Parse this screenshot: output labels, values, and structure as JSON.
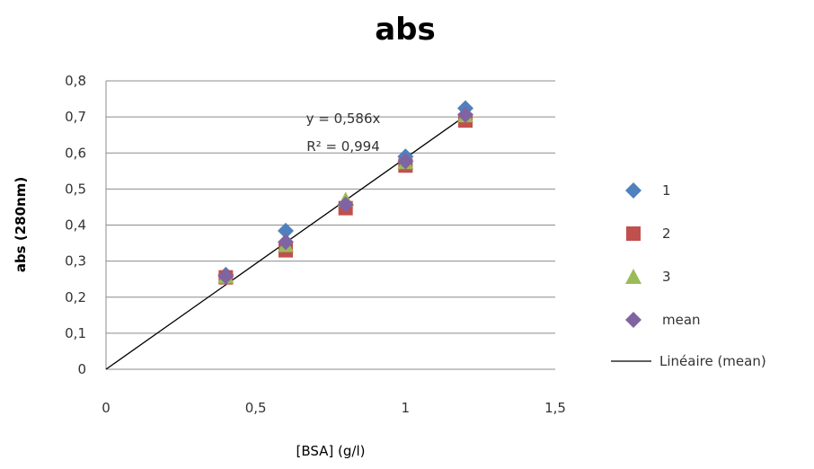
{
  "chart_data": {
    "type": "scatter",
    "title": "abs",
    "xlabel": "[BSA] (g/l)",
    "ylabel": "abs (280nm)",
    "xlim": [
      0,
      1.5
    ],
    "ylim": [
      0,
      0.8
    ],
    "x_ticks": [
      "0",
      "0,5",
      "1",
      "1,5"
    ],
    "y_ticks": [
      "0",
      "0,1",
      "0,2",
      "0,3",
      "0,4",
      "0,5",
      "0,6",
      "0,7",
      "0,8"
    ],
    "grid": "horizontal",
    "legend_position": "right",
    "series": [
      {
        "name": "1",
        "marker": "diamond",
        "color": "#4f81bd",
        "x": [
          0.4,
          0.6,
          0.8,
          1.0,
          1.2
        ],
        "y": [
          0.262,
          0.384,
          0.455,
          0.59,
          0.724
        ]
      },
      {
        "name": "2",
        "marker": "square",
        "color": "#c0504d",
        "x": [
          0.4,
          0.6,
          0.8,
          1.0,
          1.2
        ],
        "y": [
          0.255,
          0.33,
          0.447,
          0.565,
          0.69
        ]
      },
      {
        "name": "3",
        "marker": "triangle",
        "color": "#9bbb59",
        "x": [
          0.4,
          0.6,
          0.8,
          1.0,
          1.2
        ],
        "y": [
          0.258,
          0.345,
          0.47,
          0.575,
          0.705
        ]
      },
      {
        "name": "mean",
        "marker": "diamond",
        "color": "#8064a2",
        "x": [
          0.4,
          0.6,
          0.8,
          1.0,
          1.2
        ],
        "y": [
          0.258,
          0.353,
          0.457,
          0.577,
          0.706
        ]
      }
    ],
    "trendline": {
      "name": "Linéaire (mean)",
      "slope": 0.586,
      "intercept": 0,
      "x_range": [
        0,
        1.2
      ],
      "color": "#000000",
      "equation_label": "y = 0,586x",
      "r2_label": "R² = 0,994"
    }
  }
}
